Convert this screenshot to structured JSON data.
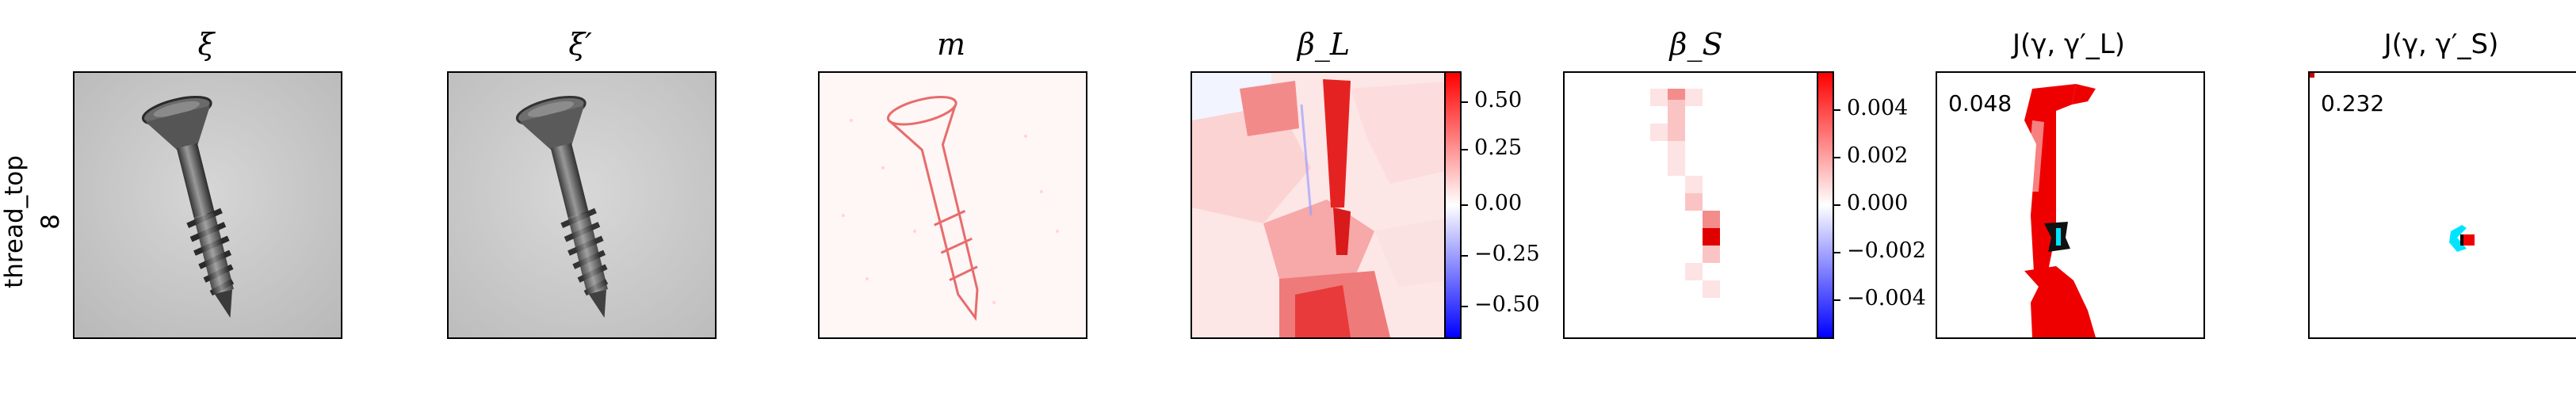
{
  "row_label": {
    "name": "thread_top",
    "index": "8"
  },
  "panels": {
    "xi": {
      "title": "ξ"
    },
    "xi_prime": {
      "title": "ξ′"
    },
    "m": {
      "title": "m"
    },
    "beta_l": {
      "title": "β_L",
      "colorbar_ticks": [
        "0.50",
        "0.25",
        "0.00",
        "−0.25",
        "−0.50"
      ]
    },
    "beta_s": {
      "title": "β_S",
      "colorbar_ticks": [
        "0.004",
        "0.002",
        "0.000",
        "−0.002",
        "−0.004"
      ]
    },
    "j_l": {
      "title": "J(γ, γ′_L)",
      "score": "0.048"
    },
    "j_s": {
      "title": "J(γ, γ′_S)",
      "score": "0.232"
    }
  },
  "colors": {
    "positive": "#ff0000",
    "neutral": "#ffffff",
    "negative": "#0000ff",
    "match": "#000000",
    "highlight": "#00e5ff"
  }
}
